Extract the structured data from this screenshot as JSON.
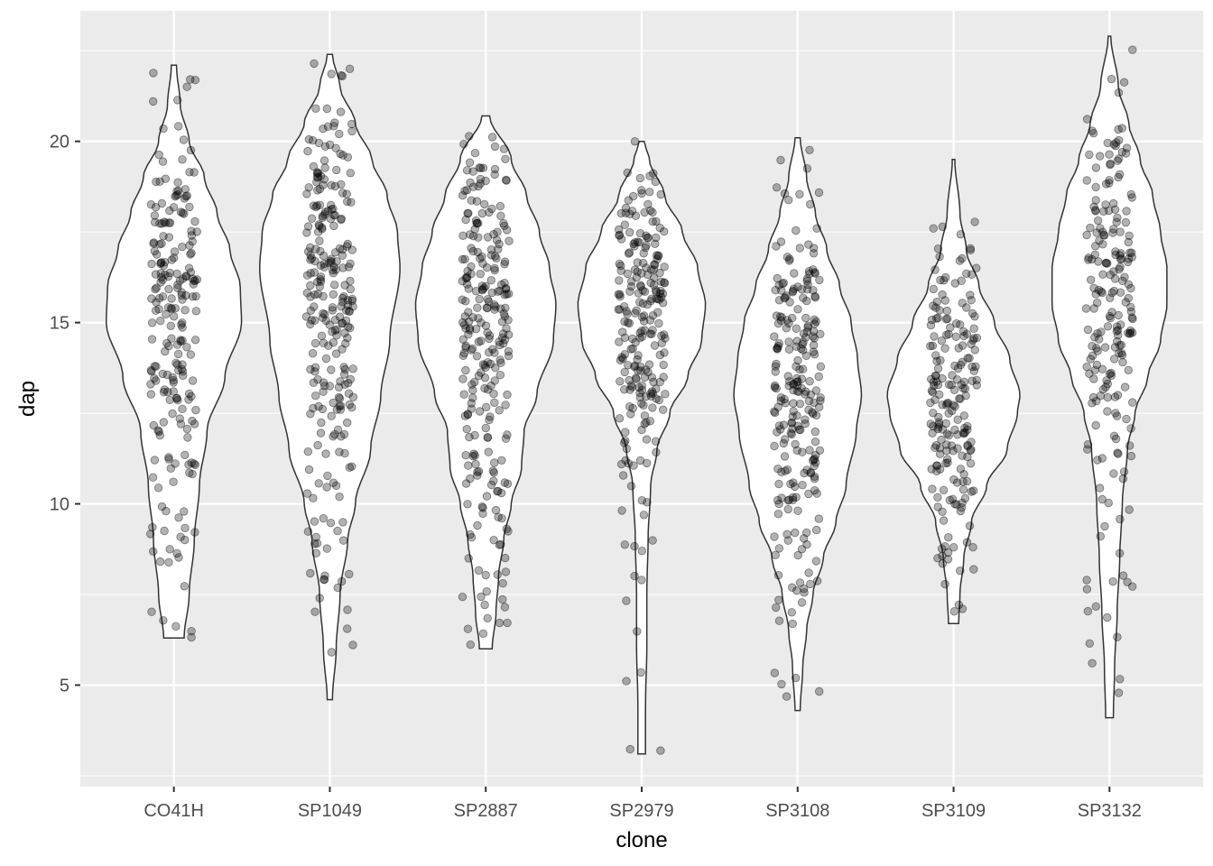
{
  "chart_data": {
    "type": "violin",
    "xlabel": "clone",
    "ylabel": "dap",
    "categories": [
      "CO41H",
      "SP1049",
      "SP2887",
      "SP2979",
      "SP3108",
      "SP3109",
      "SP3132"
    ],
    "y_ticks": [
      5,
      10,
      15,
      20
    ],
    "ylim": [
      2.2,
      23.6
    ],
    "grid": true,
    "jitter_points": true,
    "background_color": "#ebebeb",
    "violin_fill": "#ffffff",
    "point_color": "#000000",
    "point_alpha": 0.3,
    "series": [
      {
        "category": "CO41H",
        "min": 6.3,
        "max": 22.1,
        "n": 220,
        "density": [
          [
            6.3,
            0.08
          ],
          [
            7.5,
            0.12
          ],
          [
            9,
            0.16
          ],
          [
            10.5,
            0.2
          ],
          [
            12,
            0.26
          ],
          [
            13.5,
            0.4
          ],
          [
            15,
            0.53
          ],
          [
            16,
            0.52
          ],
          [
            17,
            0.44
          ],
          [
            18,
            0.34
          ],
          [
            19,
            0.24
          ],
          [
            20,
            0.12
          ],
          [
            21,
            0.05
          ],
          [
            22.1,
            0.02
          ]
        ]
      },
      {
        "category": "SP1049",
        "min": 4.6,
        "max": 22.4,
        "n": 260,
        "density": [
          [
            4.6,
            0.02
          ],
          [
            6,
            0.05
          ],
          [
            7.5,
            0.08
          ],
          [
            9,
            0.14
          ],
          [
            10,
            0.2
          ],
          [
            11.5,
            0.32
          ],
          [
            13,
            0.4
          ],
          [
            14.5,
            0.47
          ],
          [
            16.5,
            0.55
          ],
          [
            17.5,
            0.53
          ],
          [
            18.5,
            0.45
          ],
          [
            19.5,
            0.33
          ],
          [
            20.5,
            0.2
          ],
          [
            21.5,
            0.08
          ],
          [
            22.4,
            0.02
          ]
        ]
      },
      {
        "category": "SP2887",
        "min": 6.0,
        "max": 20.7,
        "n": 260,
        "density": [
          [
            6,
            0.05
          ],
          [
            7,
            0.08
          ],
          [
            8,
            0.1
          ],
          [
            9,
            0.14
          ],
          [
            10,
            0.2
          ],
          [
            11,
            0.28
          ],
          [
            12,
            0.3
          ],
          [
            13,
            0.4
          ],
          [
            14.5,
            0.53
          ],
          [
            15.5,
            0.55
          ],
          [
            16.5,
            0.5
          ],
          [
            17.5,
            0.42
          ],
          [
            18.5,
            0.32
          ],
          [
            19.5,
            0.2
          ],
          [
            20.7,
            0.03
          ]
        ]
      },
      {
        "category": "SP2979",
        "min": 3.1,
        "max": 20.0,
        "n": 230,
        "density": [
          [
            3.1,
            0.03
          ],
          [
            4.5,
            0.03
          ],
          [
            6,
            0.04
          ],
          [
            7.5,
            0.04
          ],
          [
            9,
            0.05
          ],
          [
            10.5,
            0.07
          ],
          [
            11.5,
            0.12
          ],
          [
            12.5,
            0.22
          ],
          [
            13.5,
            0.36
          ],
          [
            14.5,
            0.47
          ],
          [
            15.5,
            0.5
          ],
          [
            16.5,
            0.44
          ],
          [
            17.5,
            0.32
          ],
          [
            18.5,
            0.18
          ],
          [
            19.5,
            0.06
          ],
          [
            20,
            0.02
          ]
        ]
      },
      {
        "category": "SP3108",
        "min": 4.3,
        "max": 20.1,
        "n": 240,
        "density": [
          [
            4.3,
            0.02
          ],
          [
            5.5,
            0.04
          ],
          [
            6.5,
            0.07
          ],
          [
            7.5,
            0.12
          ],
          [
            8.5,
            0.2
          ],
          [
            9.5,
            0.3
          ],
          [
            10.5,
            0.38
          ],
          [
            12,
            0.46
          ],
          [
            13,
            0.5
          ],
          [
            14,
            0.47
          ],
          [
            15,
            0.42
          ],
          [
            16,
            0.33
          ],
          [
            17,
            0.23
          ],
          [
            18,
            0.14
          ],
          [
            19,
            0.07
          ],
          [
            20.1,
            0.02
          ]
        ]
      },
      {
        "category": "SP3109",
        "min": 6.7,
        "max": 19.5,
        "n": 200,
        "density": [
          [
            6.7,
            0.04
          ],
          [
            7.5,
            0.05
          ],
          [
            8.5,
            0.08
          ],
          [
            9.5,
            0.14
          ],
          [
            10.5,
            0.26
          ],
          [
            11.5,
            0.42
          ],
          [
            12.5,
            0.5
          ],
          [
            13,
            0.52
          ],
          [
            14,
            0.44
          ],
          [
            15,
            0.32
          ],
          [
            16,
            0.2
          ],
          [
            17,
            0.1
          ],
          [
            18,
            0.05
          ],
          [
            19.5,
            0.01
          ]
        ]
      },
      {
        "category": "SP3132",
        "min": 4.1,
        "max": 22.9,
        "n": 210,
        "density": [
          [
            4.1,
            0.03
          ],
          [
            5.5,
            0.04
          ],
          [
            7,
            0.06
          ],
          [
            8.5,
            0.08
          ],
          [
            10,
            0.1
          ],
          [
            11.5,
            0.14
          ],
          [
            12.5,
            0.2
          ],
          [
            13.5,
            0.3
          ],
          [
            14.5,
            0.4
          ],
          [
            15.5,
            0.45
          ],
          [
            16.5,
            0.45
          ],
          [
            17.5,
            0.4
          ],
          [
            18.5,
            0.34
          ],
          [
            19.5,
            0.24
          ],
          [
            20.5,
            0.15
          ],
          [
            21.5,
            0.07
          ],
          [
            22.9,
            0.01
          ]
        ]
      }
    ]
  }
}
